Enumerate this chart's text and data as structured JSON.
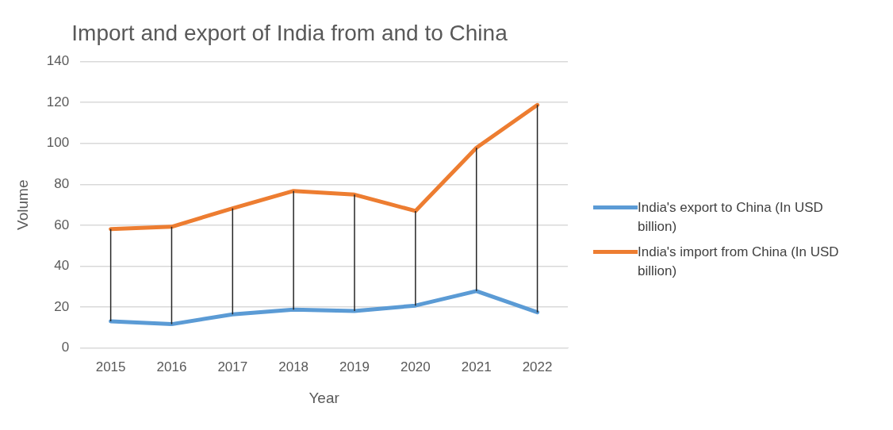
{
  "chart_data": {
    "type": "line",
    "title": "Import and export of India from and to China",
    "xlabel": "Year",
    "ylabel": "Volume",
    "categories": [
      "2015",
      "2016",
      "2017",
      "2018",
      "2019",
      "2020",
      "2021",
      "2022"
    ],
    "series": [
      {
        "name": "India's export to China (In USD billion)",
        "color": "#5b9bd5",
        "values": [
          13.1,
          11.7,
          16.5,
          18.8,
          18.1,
          20.8,
          27.9,
          17.5
        ]
      },
      {
        "name": "India's import from China (In USD billion)",
        "color": "#ed7d31",
        "values": [
          58.2,
          59.3,
          68.3,
          76.8,
          75,
          67,
          97.9,
          118.8
        ],
        "errors": [
          [
            13.1,
            58.2
          ],
          [
            11.7,
            59.3
          ],
          [
            16.5,
            68.3
          ],
          [
            18.8,
            76.8
          ],
          [
            18.1,
            75
          ],
          [
            20.8,
            67
          ],
          [
            27.9,
            97.9
          ],
          [
            17.5,
            118.8
          ]
        ]
      }
    ],
    "ylim": [
      0,
      140
    ],
    "yticks": [
      0,
      20,
      40,
      60,
      80,
      100,
      120,
      140
    ],
    "grid": "y",
    "legend": "right",
    "marker": "none",
    "line_style": "solid"
  }
}
